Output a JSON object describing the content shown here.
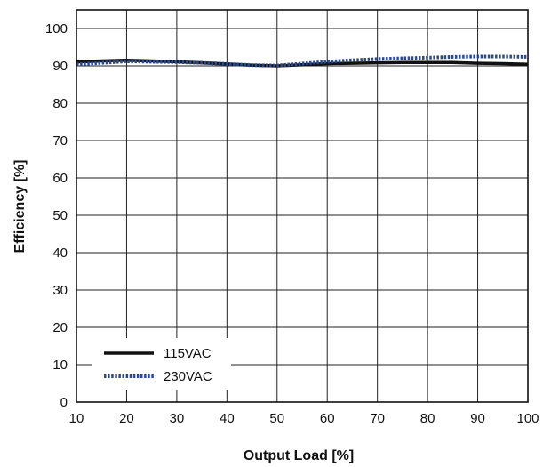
{
  "chart_data": {
    "type": "line",
    "title": "",
    "xlabel": "Output Load [%]",
    "ylabel": "Efficiency [%]",
    "xlim": [
      10,
      100
    ],
    "ylim": [
      0,
      105
    ],
    "xticks": [
      10,
      20,
      30,
      40,
      50,
      60,
      70,
      80,
      90,
      100
    ],
    "yticks": [
      0,
      10,
      20,
      30,
      40,
      50,
      60,
      70,
      80,
      90,
      100
    ],
    "grid": true,
    "legend_position": "bottom-left",
    "series": [
      {
        "name": "115VAC",
        "color": "#111111",
        "style": "solid",
        "x": [
          10,
          15,
          20,
          25,
          30,
          35,
          40,
          45,
          50,
          55,
          60,
          65,
          70,
          75,
          80,
          85,
          90,
          95,
          100
        ],
        "y": [
          91.0,
          91.3,
          91.5,
          91.3,
          91.1,
          90.8,
          90.5,
          90.2,
          90.0,
          90.3,
          90.6,
          90.7,
          90.8,
          90.9,
          90.9,
          90.9,
          90.7,
          90.6,
          90.4
        ]
      },
      {
        "name": "230VAC",
        "color": "#2b4a8b",
        "style": "dotted",
        "x": [
          10,
          15,
          20,
          25,
          30,
          35,
          40,
          45,
          50,
          55,
          60,
          65,
          70,
          75,
          80,
          85,
          90,
          95,
          100
        ],
        "y": [
          90.4,
          90.8,
          91.2,
          91.1,
          91.0,
          90.8,
          90.5,
          90.2,
          90.1,
          90.6,
          91.1,
          91.5,
          91.8,
          92.0,
          92.2,
          92.4,
          92.5,
          92.5,
          92.4
        ]
      }
    ]
  }
}
